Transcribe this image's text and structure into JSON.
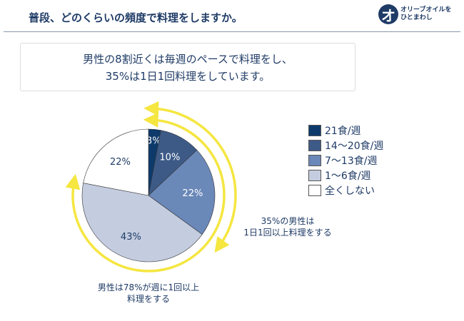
{
  "header": {
    "title": "普段、どのくらいの頻度で料理をしますか。",
    "logo_mark": "オ",
    "logo_line1": "オリーブオイルを",
    "logo_line2": "ひとまわし"
  },
  "summary": {
    "line1": "男性の8割近くは毎週のペースで料理をし、",
    "line2": "35%は1日1回料理をしています。"
  },
  "annotations": {
    "daily": [
      "35%の男性は",
      "1日1回以上料理をする"
    ],
    "weekly": [
      "男性は78%が週に1回以上",
      "料理をする"
    ]
  },
  "chart_data": {
    "type": "pie",
    "categories": [
      "21食/週",
      "14〜20食/週",
      "7〜13食/週",
      "1〜6食/週",
      "全くしない"
    ],
    "values": [
      3,
      10,
      22,
      43,
      22
    ],
    "labels": [
      "3%",
      "10%",
      "22%",
      "43%",
      "22%"
    ],
    "colors": [
      "#0d3a6b",
      "#3d5a87",
      "#6a88b8",
      "#c4cde0",
      "#ffffff"
    ],
    "label_colors": [
      "#ffffff",
      "#ffffff",
      "#ffffff",
      "#1f3b66",
      "#1f3b66"
    ],
    "legend_position": "right",
    "highlight_arcs": [
      {
        "covers_percent": 35,
        "color": "#f5e640"
      },
      {
        "covers_percent": 78,
        "color": "#f5e640"
      }
    ]
  }
}
